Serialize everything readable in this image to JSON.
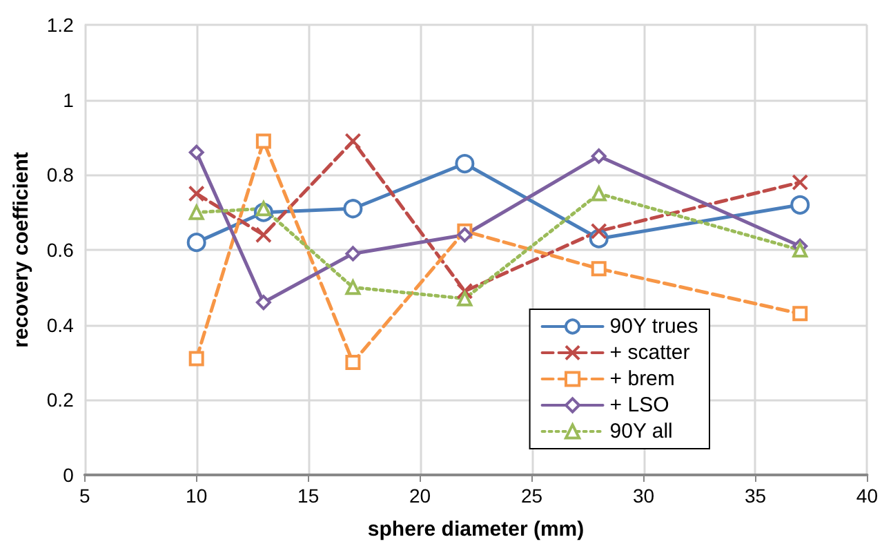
{
  "chart_data": {
    "type": "line",
    "xlabel": "sphere diameter (mm)",
    "ylabel": "recovery coefficient",
    "x": [
      10,
      13,
      17,
      22,
      28,
      37
    ],
    "series": [
      {
        "name": "90Y trues",
        "color": "#4a7ebb",
        "values": [
          0.62,
          0.7,
          0.71,
          0.83,
          0.63,
          0.72
        ],
        "marker": "circle",
        "line_style": "solid"
      },
      {
        "name": "+ scatter",
        "color": "#be4b48",
        "values": [
          0.75,
          0.64,
          0.89,
          0.49,
          0.65,
          0.78
        ],
        "marker": "cross",
        "line_style": "dashed"
      },
      {
        "name": "+ brem",
        "color": "#f79646",
        "values": [
          0.31,
          0.89,
          0.3,
          0.65,
          0.55,
          0.43
        ],
        "marker": "square",
        "line_style": "dashed"
      },
      {
        "name": "+ LSO",
        "color": "#7d60a0",
        "values": [
          0.86,
          0.46,
          0.59,
          0.64,
          0.85,
          0.61
        ],
        "marker": "diamond",
        "line_style": "solid"
      },
      {
        "name": "90Y all",
        "color": "#9bbb59",
        "values": [
          0.7,
          0.71,
          0.5,
          0.47,
          0.75,
          0.6
        ],
        "marker": "triangle",
        "line_style": "dotted"
      }
    ],
    "xlim": [
      5,
      40
    ],
    "xticks": [
      5,
      10,
      15,
      20,
      25,
      30,
      35,
      40
    ],
    "ylim": [
      0,
      1.2
    ],
    "yticks": [
      0,
      0.2,
      0.4,
      0.6,
      0.8,
      1,
      1.2
    ],
    "grid": true,
    "legend": "bottom right"
  }
}
